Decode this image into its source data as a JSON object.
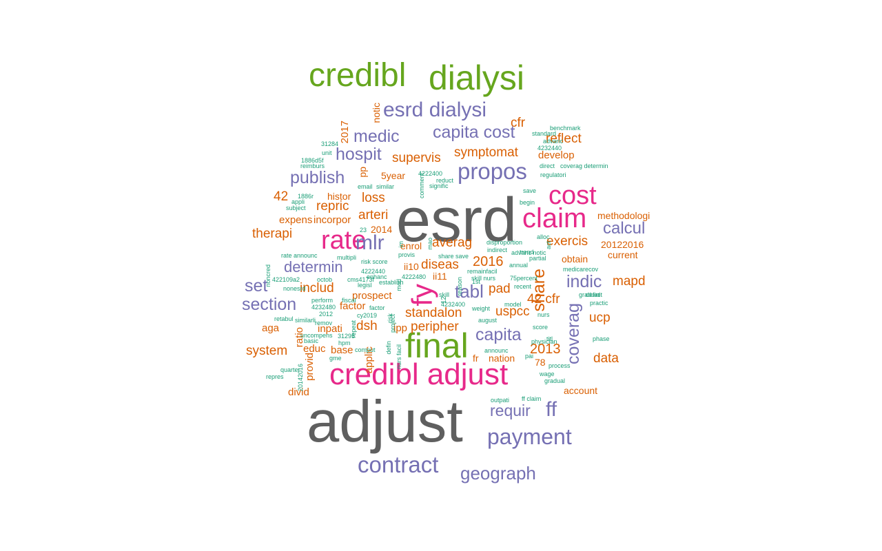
{
  "colors": {
    "gray": "#5f5f5f",
    "pink": "#e7298a",
    "green": "#66a61e",
    "purple": "#7570b3",
    "orange": "#d95f02",
    "teal": "#1b9e77"
  },
  "words": [
    {
      "text": "esrd",
      "color": "gray"
    },
    {
      "text": "adjust",
      "color": "gray"
    },
    {
      "text": "credibl",
      "color": "green"
    },
    {
      "text": "dialysi",
      "color": "green"
    },
    {
      "text": "final",
      "color": "green"
    },
    {
      "text": "fy",
      "color": "pink"
    },
    {
      "text": "credibl adjust",
      "color": "pink"
    },
    {
      "text": "claim",
      "color": "pink"
    },
    {
      "text": "cost",
      "color": "pink"
    },
    {
      "text": "rate",
      "color": "pink"
    },
    {
      "text": "esrd dialysi",
      "color": "purple"
    },
    {
      "text": "capita cost",
      "color": "purple"
    },
    {
      "text": "medic",
      "color": "purple"
    },
    {
      "text": "hospit",
      "color": "purple"
    },
    {
      "text": "propos",
      "color": "purple"
    },
    {
      "text": "publish",
      "color": "purple"
    },
    {
      "text": "mlr",
      "color": "purple"
    },
    {
      "text": "determin",
      "color": "purple"
    },
    {
      "text": "section",
      "color": "purple"
    },
    {
      "text": "set",
      "color": "purple"
    },
    {
      "text": "calcul",
      "color": "purple"
    },
    {
      "text": "indic",
      "color": "purple"
    },
    {
      "text": "coverag",
      "color": "purple"
    },
    {
      "text": "tabl",
      "color": "purple"
    },
    {
      "text": "capita",
      "color": "purple"
    },
    {
      "text": "payment",
      "color": "purple"
    },
    {
      "text": "contract",
      "color": "purple"
    },
    {
      "text": "geograph",
      "color": "purple"
    },
    {
      "text": "requir",
      "color": "purple"
    },
    {
      "text": "ff",
      "color": "purple"
    },
    {
      "text": "standalon",
      "color": "orange"
    },
    {
      "text": "peripher",
      "color": "orange"
    },
    {
      "text": "share",
      "color": "orange"
    },
    {
      "text": "exercis",
      "color": "orange"
    },
    {
      "text": "averag",
      "color": "orange"
    },
    {
      "text": "diseas",
      "color": "orange"
    },
    {
      "text": "2016",
      "color": "orange"
    },
    {
      "text": "pad",
      "color": "orange"
    },
    {
      "text": "42 cfr",
      "color": "orange"
    },
    {
      "text": "uspcc",
      "color": "orange"
    },
    {
      "text": "2013",
      "color": "orange"
    },
    {
      "text": "ucp",
      "color": "orange"
    },
    {
      "text": "data",
      "color": "orange"
    },
    {
      "text": "mapd",
      "color": "orange"
    },
    {
      "text": "cfr",
      "color": "orange"
    },
    {
      "text": "reflect",
      "color": "orange"
    },
    {
      "text": "develop",
      "color": "orange"
    },
    {
      "text": "symptomat",
      "color": "orange"
    },
    {
      "text": "supervis",
      "color": "orange"
    },
    {
      "text": "5year",
      "color": "orange"
    },
    {
      "text": "loss",
      "color": "orange"
    },
    {
      "text": "arteri",
      "color": "orange"
    },
    {
      "text": "repric",
      "color": "orange"
    },
    {
      "text": "histor",
      "color": "orange"
    },
    {
      "text": "42",
      "color": "orange"
    },
    {
      "text": "expens",
      "color": "orange"
    },
    {
      "text": "incorpor",
      "color": "orange"
    },
    {
      "text": "therapi",
      "color": "orange"
    },
    {
      "text": "includ",
      "color": "orange"
    },
    {
      "text": "prospect",
      "color": "orange"
    },
    {
      "text": "dsh",
      "color": "orange"
    },
    {
      "text": "ipp",
      "color": "orange"
    },
    {
      "text": "inpati",
      "color": "orange"
    },
    {
      "text": "factor",
      "color": "orange"
    },
    {
      "text": "system",
      "color": "orange"
    },
    {
      "text": "educ",
      "color": "orange"
    },
    {
      "text": "base",
      "color": "orange"
    },
    {
      "text": "aga",
      "color": "orange"
    },
    {
      "text": "provid",
      "color": "orange"
    },
    {
      "text": "ratio",
      "color": "orange"
    },
    {
      "text": "divid",
      "color": "orange"
    },
    {
      "text": "applic",
      "color": "orange"
    },
    {
      "text": "2014",
      "color": "orange"
    },
    {
      "text": "enrol",
      "color": "orange"
    },
    {
      "text": "ii10",
      "color": "orange"
    },
    {
      "text": "ii11",
      "color": "orange"
    },
    {
      "text": "2017",
      "color": "orange"
    },
    {
      "text": "notic",
      "color": "orange"
    },
    {
      "text": "pp",
      "color": "orange"
    },
    {
      "text": "methodologi",
      "color": "orange"
    },
    {
      "text": "20122016",
      "color": "orange"
    },
    {
      "text": "current",
      "color": "orange"
    },
    {
      "text": "obtain",
      "color": "orange"
    },
    {
      "text": "fr",
      "color": "orange"
    },
    {
      "text": "nation",
      "color": "orange"
    },
    {
      "text": "78",
      "color": "orange"
    },
    {
      "text": "account",
      "color": "orange"
    },
    {
      "text": "benchmark",
      "color": "teal"
    },
    {
      "text": "standard",
      "color": "teal"
    },
    {
      "text": "advanc",
      "color": "teal"
    },
    {
      "text": "4232440",
      "color": "teal"
    },
    {
      "text": "direct",
      "color": "teal"
    },
    {
      "text": "coverag determin",
      "color": "teal"
    },
    {
      "text": "regulatori",
      "color": "teal"
    },
    {
      "text": "save",
      "color": "teal"
    },
    {
      "text": "begin",
      "color": "teal"
    },
    {
      "text": "31284",
      "color": "teal"
    },
    {
      "text": "unit",
      "color": "teal"
    },
    {
      "text": "1886d5f",
      "color": "teal"
    },
    {
      "text": "reimburs",
      "color": "teal"
    },
    {
      "text": "email",
      "color": "teal"
    },
    {
      "text": "similar",
      "color": "teal"
    },
    {
      "text": "4222400",
      "color": "teal"
    },
    {
      "text": "reduct",
      "color": "teal"
    },
    {
      "text": "signific",
      "color": "teal"
    },
    {
      "text": "1886r",
      "color": "teal"
    },
    {
      "text": "appli",
      "color": "teal"
    },
    {
      "text": "subject",
      "color": "teal"
    },
    {
      "text": "23",
      "color": "teal"
    },
    {
      "text": "alloc",
      "color": "teal"
    },
    {
      "text": "disproportion",
      "color": "teal"
    },
    {
      "text": "indirect",
      "color": "teal"
    },
    {
      "text": "trend",
      "color": "teal"
    },
    {
      "text": "partial",
      "color": "teal"
    },
    {
      "text": "annual",
      "color": "teal"
    },
    {
      "text": "medicarecov",
      "color": "teal"
    },
    {
      "text": "provis",
      "color": "teal"
    },
    {
      "text": "rate announc",
      "color": "teal"
    },
    {
      "text": "multipli",
      "color": "teal"
    },
    {
      "text": "risk score",
      "color": "teal"
    },
    {
      "text": "4222440",
      "color": "teal"
    },
    {
      "text": "enhanc",
      "color": "teal"
    },
    {
      "text": "4222480",
      "color": "teal"
    },
    {
      "text": "establish",
      "color": "teal"
    },
    {
      "text": "cms4173f",
      "color": "teal"
    },
    {
      "text": "422109a2",
      "color": "teal"
    },
    {
      "text": "octob",
      "color": "teal"
    },
    {
      "text": "legisl",
      "color": "teal"
    },
    {
      "text": "nonesrd",
      "color": "teal"
    },
    {
      "text": "noncred",
      "color": "teal"
    },
    {
      "text": "share save",
      "color": "teal"
    },
    {
      "text": "mao",
      "color": "teal"
    },
    {
      "text": "remainfacil",
      "color": "teal"
    },
    {
      "text": "skill nurs",
      "color": "teal"
    },
    {
      "text": "75percent",
      "color": "teal"
    },
    {
      "text": "recent",
      "color": "teal"
    },
    {
      "text": "graduat",
      "color": "teal"
    },
    {
      "text": "definit",
      "color": "teal"
    },
    {
      "text": "practic",
      "color": "teal"
    },
    {
      "text": "model",
      "color": "teal"
    },
    {
      "text": "weight",
      "color": "teal"
    },
    {
      "text": "1st",
      "color": "teal"
    },
    {
      "text": "4232400",
      "color": "teal"
    },
    {
      "text": "perform",
      "color": "teal"
    },
    {
      "text": "fiscal",
      "color": "teal"
    },
    {
      "text": "4232480",
      "color": "teal"
    },
    {
      "text": "factor",
      "color": "teal"
    },
    {
      "text": "2012",
      "color": "teal"
    },
    {
      "text": "cy2019",
      "color": "teal"
    },
    {
      "text": "remov",
      "color": "teal"
    },
    {
      "text": "similarli",
      "color": "teal"
    },
    {
      "text": "retabul",
      "color": "teal"
    },
    {
      "text": "nurs",
      "color": "teal"
    },
    {
      "text": "august",
      "color": "teal"
    },
    {
      "text": "score",
      "color": "teal"
    },
    {
      "text": "physician",
      "color": "teal"
    },
    {
      "text": "titl",
      "color": "teal"
    },
    {
      "text": "phase",
      "color": "teal"
    },
    {
      "text": "uncompens",
      "color": "teal"
    },
    {
      "text": "basic",
      "color": "teal"
    },
    {
      "text": "31295",
      "color": "teal"
    },
    {
      "text": "hpm",
      "color": "teal"
    },
    {
      "text": "comput",
      "color": "teal"
    },
    {
      "text": "gme",
      "color": "teal"
    },
    {
      "text": "announc",
      "color": "teal"
    },
    {
      "text": "process",
      "color": "teal"
    },
    {
      "text": "wage",
      "color": "teal"
    },
    {
      "text": "gradual",
      "color": "teal"
    },
    {
      "text": "quarter",
      "color": "teal"
    },
    {
      "text": "repres",
      "color": "teal"
    },
    {
      "text": "20142016",
      "color": "teal"
    },
    {
      "text": "outpati",
      "color": "teal"
    },
    {
      "text": "ff claim",
      "color": "teal"
    },
    {
      "text": "advanc notic",
      "color": "teal"
    },
    {
      "text": "nurs facil",
      "color": "teal"
    },
    {
      "text": "defin",
      "color": "teal"
    },
    {
      "text": "skill",
      "color": "teal"
    },
    {
      "text": "12",
      "color": "teal"
    },
    {
      "text": "pai",
      "color": "teal"
    },
    {
      "text": "act",
      "color": "teal"
    },
    {
      "text": "project",
      "color": "teal"
    },
    {
      "text": "risk",
      "color": "teal"
    },
    {
      "text": "mod",
      "color": "teal"
    },
    {
      "text": "im",
      "color": "teal"
    },
    {
      "text": "comment",
      "color": "teal"
    },
    {
      "text": "repeat",
      "color": "teal"
    },
    {
      "text": "reason",
      "color": "teal"
    },
    {
      "text": "total",
      "color": "teal"
    }
  ]
}
